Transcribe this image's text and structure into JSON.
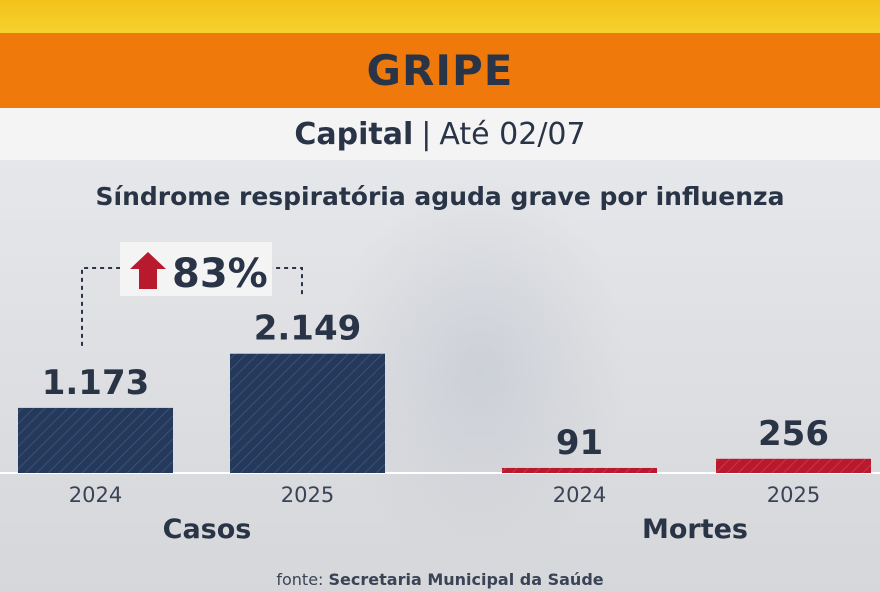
{
  "header": {
    "title": "GRIPE",
    "subtitle_bold": "Capital",
    "separator": "|",
    "subtitle_rest": "Até 02/07"
  },
  "subtitle": "Síndrome respiratória aguda grave por influenza",
  "colors": {
    "casos": "#253a5b",
    "mortes": "#b8192c",
    "text": "#2a3447",
    "title_bar": "#ef7a0b",
    "top_strip": "#f3c21a"
  },
  "chart_data": {
    "type": "bar",
    "title": "Síndrome respiratória aguda grave por influenza",
    "groups": [
      {
        "name": "Casos",
        "categories": [
          "2024",
          "2025"
        ],
        "values": [
          1173,
          2149
        ],
        "labels": [
          "1.173",
          "2.149"
        ]
      },
      {
        "name": "Mortes",
        "categories": [
          "2024",
          "2025"
        ],
        "values": [
          91,
          256
        ],
        "labels": [
          "91",
          "256"
        ]
      }
    ],
    "annotation": {
      "text": "83%",
      "icon": "up-arrow-icon",
      "applies_to": "Casos 2024→2025"
    }
  },
  "source": {
    "label": "fonte:",
    "name": "Secretaria Municipal da Saúde"
  }
}
